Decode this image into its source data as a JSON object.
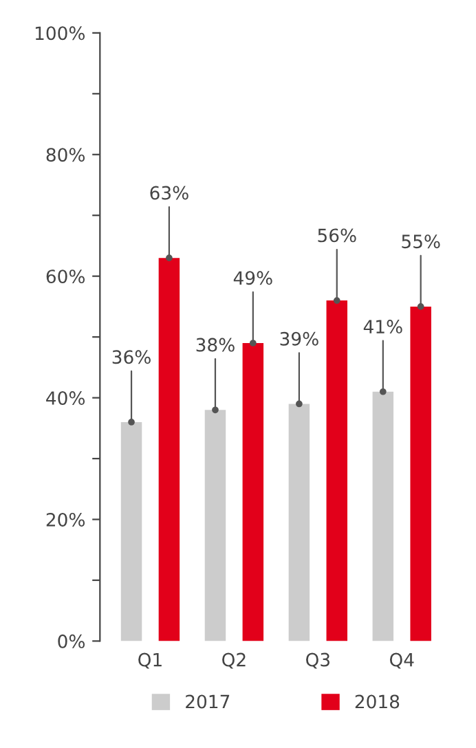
{
  "chart_data": {
    "type": "bar",
    "categories": [
      "Q1",
      "Q2",
      "Q3",
      "Q4"
    ],
    "series": [
      {
        "name": "2017",
        "color": "#cccccc",
        "values": [
          36,
          38,
          39,
          41
        ],
        "value_labels": [
          "36%",
          "38%",
          "39%",
          "41%"
        ]
      },
      {
        "name": "2018",
        "color": "#e2001a",
        "values": [
          63,
          49,
          56,
          55
        ],
        "value_labels": [
          "63%",
          "49%",
          "56%",
          "55%"
        ]
      }
    ],
    "ylim": [
      0,
      100
    ],
    "yticks": [
      {
        "value": 0,
        "label": "0%"
      },
      {
        "value": 10,
        "label": null
      },
      {
        "value": 20,
        "label": "20%"
      },
      {
        "value": 30,
        "label": null
      },
      {
        "value": 40,
        "label": "40%"
      },
      {
        "value": 50,
        "label": null
      },
      {
        "value": 60,
        "label": "60%"
      },
      {
        "value": 70,
        "label": null
      },
      {
        "value": 80,
        "label": "80%"
      },
      {
        "value": 90,
        "label": null
      },
      {
        "value": 100,
        "label": "100%"
      }
    ],
    "grid": false,
    "legend": "bottom"
  }
}
